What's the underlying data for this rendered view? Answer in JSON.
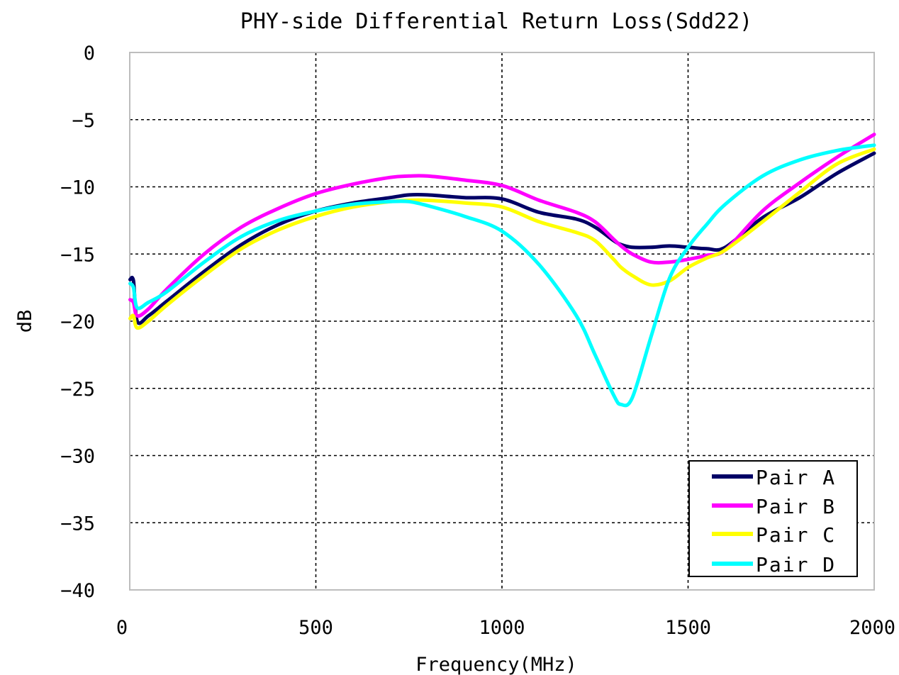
{
  "chart_data": {
    "type": "line",
    "title": "PHY-side Differential Return Loss(Sdd22)",
    "xlabel": "Frequency(MHz)",
    "ylabel": "dB",
    "xlim": [
      0,
      2000
    ],
    "ylim": [
      -40,
      0
    ],
    "xticks": [
      "0",
      "500",
      "1000",
      "1500",
      "2000"
    ],
    "yticks": [
      "0",
      "−5",
      "−10",
      "−15",
      "−20",
      "−25",
      "−30",
      "−35",
      "−40"
    ],
    "grid": true,
    "legend_position": "bottom-right",
    "x": [
      1,
      10,
      20,
      50,
      100,
      200,
      300,
      400,
      500,
      600,
      700,
      750,
      800,
      900,
      1000,
      1100,
      1200,
      1250,
      1300,
      1320,
      1350,
      1400,
      1450,
      1500,
      1550,
      1600,
      1700,
      1800,
      1900,
      2000
    ],
    "series": [
      {
        "name": "Pair A",
        "color": "#000066",
        "values": [
          -16.9,
          -17.0,
          -20.0,
          -19.6,
          -18.5,
          -16.3,
          -14.3,
          -12.8,
          -11.8,
          -11.2,
          -10.8,
          -10.6,
          -10.6,
          -10.8,
          -10.9,
          -11.9,
          -12.4,
          -13.0,
          -14.0,
          -14.3,
          -14.5,
          -14.5,
          -14.4,
          -14.5,
          -14.6,
          -14.5,
          -12.3,
          -10.8,
          -9.0,
          -7.5
        ]
      },
      {
        "name": "Pair B",
        "color": "#ff00ff",
        "values": [
          -18.4,
          -18.6,
          -19.6,
          -19.1,
          -17.6,
          -15.0,
          -13.0,
          -11.6,
          -10.5,
          -9.8,
          -9.3,
          -9.2,
          -9.2,
          -9.5,
          -9.9,
          -11.0,
          -11.9,
          -12.6,
          -13.9,
          -14.4,
          -15.0,
          -15.6,
          -15.6,
          -15.4,
          -15.1,
          -14.7,
          -11.8,
          -9.7,
          -7.8,
          -6.1
        ]
      },
      {
        "name": "Pair C",
        "color": "#ffff00",
        "values": [
          -19.8,
          -19.6,
          -20.5,
          -20.0,
          -18.8,
          -16.6,
          -14.6,
          -13.2,
          -12.2,
          -11.5,
          -11.1,
          -11.0,
          -11.0,
          -11.2,
          -11.5,
          -12.6,
          -13.4,
          -14.0,
          -15.4,
          -16.0,
          -16.6,
          -17.3,
          -17.0,
          -16.0,
          -15.3,
          -14.7,
          -12.6,
          -10.4,
          -8.3,
          -7.2
        ]
      },
      {
        "name": "Pair D",
        "color": "#00ffff",
        "values": [
          -17.2,
          -17.5,
          -19.0,
          -18.6,
          -17.8,
          -15.6,
          -13.7,
          -12.5,
          -11.8,
          -11.3,
          -11.1,
          -11.1,
          -11.4,
          -12.2,
          -13.3,
          -15.8,
          -19.6,
          -22.5,
          -25.5,
          -26.2,
          -25.7,
          -21.2,
          -16.8,
          -14.5,
          -12.8,
          -11.3,
          -9.2,
          -8.0,
          -7.3,
          -6.9
        ]
      }
    ]
  }
}
